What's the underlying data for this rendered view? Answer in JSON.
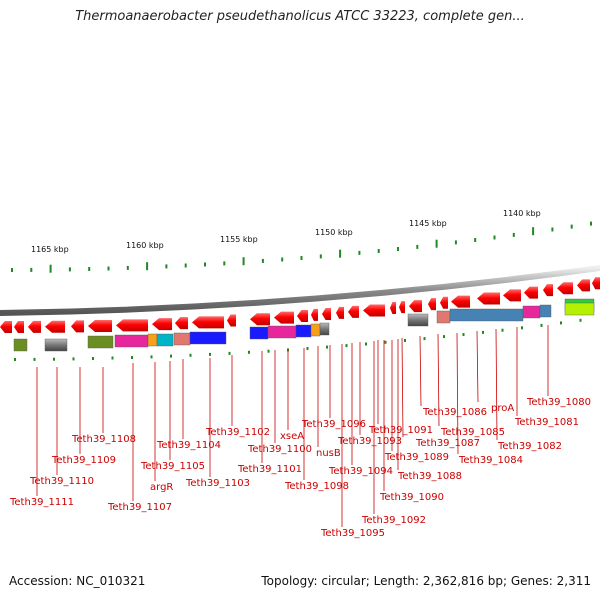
{
  "title": "Thermoanaerobacter pseudethanolicus ATCC 33223, complete gen...",
  "footer": {
    "accession": "Accession: NC_010321",
    "topology": "Topology: circular; Length: 2,362,816 bp; Genes: 2,311"
  },
  "scale_labels": [
    "1165 kbp",
    "1160 kbp",
    "1155 kbp",
    "1150 kbp",
    "1145 kbp",
    "1140 kbp"
  ],
  "gene_labels": [
    "Teth39_1111",
    "Teth39_1110",
    "Teth39_1109",
    "Teth39_1108",
    "Teth39_1107",
    "argR",
    "Teth39_1105",
    "Teth39_1104",
    "Teth39_1103",
    "Teth39_1102",
    "Teth39_1101",
    "Teth39_1100",
    "xseA",
    "Teth39_1098",
    "nusB",
    "Teth39_1096",
    "Teth39_1095",
    "Teth39_1094",
    "Teth39_1093",
    "Teth39_1092",
    "Teth39_1091",
    "Teth39_1090",
    "Teth39_1089",
    "Teth39_1088",
    "Teth39_1087",
    "Teth39_1086",
    "Teth39_1085",
    "Teth39_1084",
    "proA",
    "Teth39_1082",
    "Teth39_1081",
    "Teth39_1080"
  ],
  "colors": {
    "gene_forward": "#ff0000",
    "backbone": "#888888",
    "tick": "#228822",
    "label": "#cc0000"
  }
}
